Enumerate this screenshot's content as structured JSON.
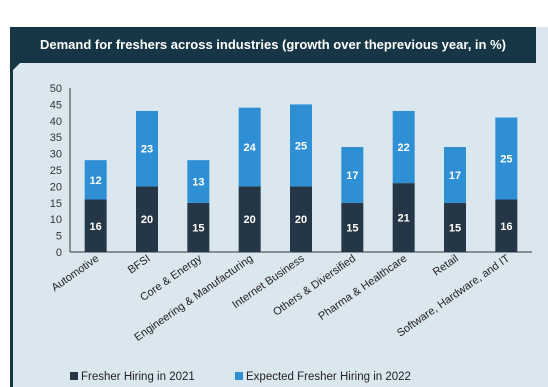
{
  "chart_data": {
    "type": "bar",
    "stacked": true,
    "title": "Demand for freshers across industries (growth over the previous year, in %)",
    "title_lines": [
      "Demand for freshers across industries (growth over the",
      "previous year, in %)"
    ],
    "categories": [
      "Automotive",
      "BFSI",
      "Core & Energy",
      "Engineering & Manufacturing",
      "Internet Business",
      "Others & Diversified",
      "Pharma & Healthcare",
      "Retail",
      "Software, Hardware, and IT"
    ],
    "series": [
      {
        "name": "Fresher Hiring in 2021",
        "color": "#253746",
        "values": [
          16,
          20,
          15,
          20,
          20,
          15,
          21,
          15,
          16
        ]
      },
      {
        "name": "Expected Fresher Hiring in 2022",
        "color": "#2f8fd5",
        "values": [
          12,
          23,
          13,
          24,
          25,
          17,
          22,
          17,
          25
        ]
      }
    ],
    "ylim": [
      0,
      50
    ],
    "yticks": [
      0,
      5,
      10,
      15,
      20,
      25,
      30,
      35,
      40,
      45,
      50
    ],
    "xlabel": "",
    "ylabel": "",
    "grid": false,
    "legend_position": "bottom",
    "data_labels": true
  },
  "colors": {
    "card_background": "#dbe7ef",
    "title_background": "#163545",
    "title_text": "#ffffff",
    "axis": "#333333"
  }
}
